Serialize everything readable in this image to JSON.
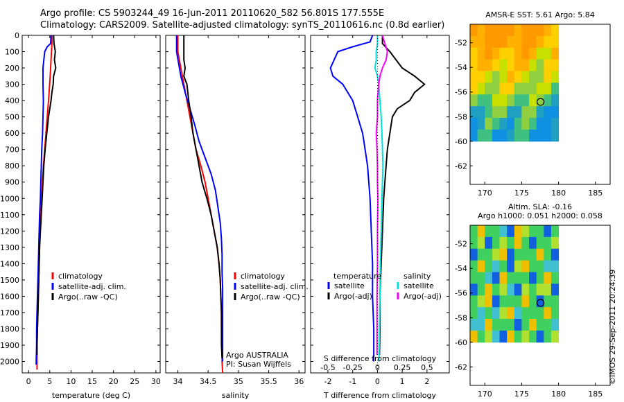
{
  "header": {
    "line1": "Argo profile: CS 5903244_49 16-Jun-2011 20110620_582 56.801S 177.555E",
    "line2": "Climatology: CARS2009. Satellite-adjusted climatology: synTS_20110616.nc (0.8d earlier)"
  },
  "watermark": "©IMOS 29-Sep-2011 20:24:39",
  "colors": {
    "climatology": "#ff0000",
    "satellite": "#0000ff",
    "argo": "#000000",
    "satellite_salinity": "#00e0e0",
    "argo_salinity": "#ff00ff"
  },
  "chart_data": [
    {
      "type": "line",
      "id": "temperature",
      "xlabel": "temperature (deg C)",
      "xlim": [
        -1.5,
        31
      ],
      "ylim": [
        2070,
        0
      ],
      "xticks": [
        "0",
        "5",
        "10",
        "15",
        "20",
        "25",
        "30"
      ],
      "yticks": [
        "0",
        "100",
        "200",
        "300",
        "400",
        "500",
        "600",
        "700",
        "800",
        "900",
        "1000",
        "1100",
        "1200",
        "1300",
        "1400",
        "1500",
        "1600",
        "1700",
        "1800",
        "1900",
        "2000"
      ],
      "legend": [
        "climatology",
        "satellite-adj. clim.",
        "Argo(..raw -QC)"
      ],
      "series": [
        {
          "name": "climatology",
          "color": "#ff0000",
          "points": [
            [
              5.5,
              0
            ],
            [
              5.5,
              50
            ],
            [
              5.4,
              100
            ],
            [
              5.3,
              150
            ],
            [
              5.1,
              250
            ],
            [
              4.7,
              400
            ],
            [
              4.4,
              500
            ],
            [
              4.1,
              600
            ],
            [
              3.8,
              700
            ],
            [
              3.5,
              800
            ],
            [
              3.3,
              900
            ],
            [
              3.1,
              1000
            ],
            [
              2.9,
              1100
            ],
            [
              2.7,
              1200
            ],
            [
              2.6,
              1300
            ],
            [
              2.5,
              1400
            ],
            [
              2.4,
              1500
            ],
            [
              2.3,
              1600
            ],
            [
              2.2,
              1700
            ],
            [
              2.1,
              1800
            ],
            [
              2.0,
              1900
            ],
            [
              2.0,
              2000
            ],
            [
              2.0,
              2050
            ]
          ]
        },
        {
          "name": "satellite-adj. clim.",
          "color": "#0000ff",
          "points": [
            [
              5.3,
              0
            ],
            [
              5.2,
              50
            ],
            [
              4.4,
              70
            ],
            [
              3.8,
              100
            ],
            [
              3.4,
              200
            ],
            [
              3.4,
              300
            ],
            [
              3.5,
              400
            ],
            [
              3.4,
              500
            ],
            [
              3.3,
              600
            ],
            [
              3.1,
              700
            ],
            [
              3.0,
              800
            ],
            [
              2.9,
              900
            ],
            [
              2.8,
              1000
            ],
            [
              2.6,
              1100
            ],
            [
              2.5,
              1200
            ],
            [
              2.4,
              1300
            ],
            [
              2.3,
              1400
            ],
            [
              2.2,
              1500
            ],
            [
              2.1,
              1600
            ],
            [
              2.0,
              1700
            ],
            [
              1.9,
              1800
            ],
            [
              1.9,
              1900
            ],
            [
              1.8,
              2000
            ],
            [
              1.8,
              2020
            ]
          ]
        },
        {
          "name": "Argo(..raw -QC)",
          "color": "#000000",
          "points": [
            [
              5.9,
              0
            ],
            [
              6.0,
              50
            ],
            [
              6.3,
              100
            ],
            [
              6.1,
              150
            ],
            [
              6.4,
              200
            ],
            [
              5.9,
              250
            ],
            [
              5.8,
              300
            ],
            [
              5.5,
              350
            ],
            [
              5.3,
              400
            ],
            [
              5.0,
              450
            ],
            [
              4.7,
              500
            ],
            [
              4.3,
              600
            ],
            [
              3.9,
              700
            ],
            [
              3.6,
              800
            ],
            [
              3.4,
              900
            ],
            [
              3.2,
              1000
            ],
            [
              3.0,
              1100
            ],
            [
              2.8,
              1200
            ],
            [
              2.6,
              1300
            ],
            [
              2.5,
              1400
            ],
            [
              2.4,
              1500
            ],
            [
              2.3,
              1600
            ],
            [
              2.2,
              1700
            ],
            [
              2.1,
              1800
            ],
            [
              2.0,
              1900
            ],
            [
              2.0,
              1960
            ]
          ]
        }
      ]
    },
    {
      "type": "line",
      "id": "salinity",
      "xlabel": "salinity",
      "xlim": [
        33.8,
        36.1
      ],
      "ylim": [
        2070,
        0
      ],
      "xticks": [
        "34",
        "34.5",
        "35",
        "35.5",
        "36"
      ],
      "legend": [
        "climatology",
        "satellite-adj. clim.",
        "Argo(..raw -QC)"
      ],
      "annotation": [
        "Argo AUSTRALIA",
        "PI: Susan Wijffels"
      ],
      "series": [
        {
          "name": "climatology",
          "color": "#ff0000",
          "points": [
            [
              34.0,
              0
            ],
            [
              34.0,
              100
            ],
            [
              34.05,
              200
            ],
            [
              34.1,
              300
            ],
            [
              34.15,
              400
            ],
            [
              34.2,
              500
            ],
            [
              34.25,
              600
            ],
            [
              34.3,
              700
            ],
            [
              34.38,
              800
            ],
            [
              34.45,
              900
            ],
            [
              34.5,
              1000
            ],
            [
              34.55,
              1100
            ],
            [
              34.6,
              1200
            ],
            [
              34.65,
              1300
            ],
            [
              34.68,
              1400
            ],
            [
              34.7,
              1500
            ],
            [
              34.71,
              1600
            ],
            [
              34.72,
              1700
            ],
            [
              34.72,
              1800
            ],
            [
              34.73,
              1900
            ],
            [
              34.73,
              2000
            ],
            [
              34.74,
              2070
            ]
          ]
        },
        {
          "name": "satellite-adj. clim.",
          "color": "#0000ff",
          "points": [
            [
              33.98,
              0
            ],
            [
              33.98,
              100
            ],
            [
              34.05,
              250
            ],
            [
              34.12,
              350
            ],
            [
              34.2,
              450
            ],
            [
              34.28,
              550
            ],
            [
              34.35,
              650
            ],
            [
              34.45,
              750
            ],
            [
              34.55,
              850
            ],
            [
              34.62,
              950
            ],
            [
              34.66,
              1050
            ],
            [
              34.7,
              1150
            ],
            [
              34.72,
              1250
            ],
            [
              34.73,
              1350
            ],
            [
              34.73,
              1450
            ],
            [
              34.74,
              1550
            ],
            [
              34.74,
              1650
            ],
            [
              34.74,
              1750
            ],
            [
              34.74,
              1850
            ],
            [
              34.74,
              1950
            ],
            [
              34.74,
              2000
            ]
          ]
        },
        {
          "name": "Argo(..raw -QC)",
          "color": "#000000",
          "points": [
            [
              34.1,
              0
            ],
            [
              34.1,
              50
            ],
            [
              34.1,
              100
            ],
            [
              34.1,
              150
            ],
            [
              34.12,
              200
            ],
            [
              34.1,
              250
            ],
            [
              34.15,
              300
            ],
            [
              34.18,
              400
            ],
            [
              34.22,
              500
            ],
            [
              34.25,
              600
            ],
            [
              34.3,
              700
            ],
            [
              34.35,
              800
            ],
            [
              34.4,
              900
            ],
            [
              34.48,
              1000
            ],
            [
              34.55,
              1100
            ],
            [
              34.6,
              1200
            ],
            [
              34.65,
              1300
            ],
            [
              34.68,
              1400
            ],
            [
              34.7,
              1500
            ],
            [
              34.71,
              1600
            ],
            [
              34.72,
              1700
            ],
            [
              34.72,
              1800
            ],
            [
              34.72,
              1900
            ],
            [
              34.73,
              1980
            ]
          ]
        }
      ]
    },
    {
      "type": "line",
      "id": "difference",
      "xlabel": "T difference from climatology",
      "xlabel_top": "S difference from climatology",
      "xlim": [
        -2.7,
        2.9
      ],
      "ylim": [
        2070,
        0
      ],
      "xticks": [
        "-2",
        "-1",
        "0",
        "1",
        "2"
      ],
      "xticks_top": [
        "-0.5",
        "-0.25",
        "0",
        "0.25",
        "0.5"
      ],
      "legend_left_title": "temperature",
      "legend_left": [
        "satellite",
        "Argo(-adj)"
      ],
      "legend_right_title": "salinity",
      "legend_right": [
        "satellite",
        "Argo(-adj)"
      ],
      "series": [
        {
          "name": "temperature satellite",
          "color": "#0000ff",
          "points": [
            [
              -0.2,
              0
            ],
            [
              -0.3,
              40
            ],
            [
              -1.0,
              70
            ],
            [
              -1.6,
              100
            ],
            [
              -1.9,
              200
            ],
            [
              -1.8,
              250
            ],
            [
              -1.4,
              300
            ],
            [
              -1.0,
              400
            ],
            [
              -0.8,
              500
            ],
            [
              -0.6,
              600
            ],
            [
              -0.5,
              700
            ],
            [
              -0.4,
              800
            ],
            [
              -0.35,
              900
            ],
            [
              -0.3,
              1000
            ],
            [
              -0.25,
              1200
            ],
            [
              -0.2,
              1400
            ],
            [
              -0.2,
              1600
            ],
            [
              -0.15,
              1800
            ],
            [
              -0.15,
              2000
            ]
          ]
        },
        {
          "name": "temperature Argo(-adj)",
          "color": "#000000",
          "points": [
            [
              0.2,
              0
            ],
            [
              0.2,
              50
            ],
            [
              0.5,
              100
            ],
            [
              1.0,
              200
            ],
            [
              1.5,
              250
            ],
            [
              1.9,
              300
            ],
            [
              1.5,
              350
            ],
            [
              1.3,
              400
            ],
            [
              0.8,
              450
            ],
            [
              0.6,
              500
            ],
            [
              0.5,
              600
            ],
            [
              0.4,
              700
            ],
            [
              0.35,
              800
            ],
            [
              0.3,
              900
            ],
            [
              0.25,
              1000
            ],
            [
              0.2,
              1200
            ],
            [
              0.15,
              1400
            ],
            [
              0.1,
              1600
            ],
            [
              0.1,
              1800
            ],
            [
              0.08,
              1960
            ]
          ]
        },
        {
          "name": "salinity satellite",
          "color": "#00e0e0",
          "points": [
            [
              0.0,
              0
            ],
            [
              0.0,
              50
            ],
            [
              -0.05,
              100
            ],
            [
              -0.05,
              150
            ],
            [
              -0.1,
              200
            ],
            [
              0.0,
              250
            ],
            [
              0.05,
              300
            ],
            [
              0.1,
              400
            ],
            [
              0.15,
              500
            ],
            [
              0.18,
              600
            ],
            [
              0.2,
              700
            ],
            [
              0.22,
              800
            ],
            [
              0.2,
              900
            ],
            [
              0.18,
              1000
            ],
            [
              0.15,
              1200
            ],
            [
              0.12,
              1400
            ],
            [
              0.1,
              1600
            ],
            [
              0.08,
              1800
            ],
            [
              0.06,
              2000
            ]
          ]
        },
        {
          "name": "salinity Argo(-adj)",
          "color": "#ff00ff",
          "points": [
            [
              0.2,
              0
            ],
            [
              0.3,
              50
            ],
            [
              0.4,
              100
            ],
            [
              0.35,
              150
            ],
            [
              0.2,
              200
            ],
            [
              0.1,
              250
            ],
            [
              0.05,
              300
            ],
            [
              0.0,
              400
            ],
            [
              0.0,
              500
            ],
            [
              -0.05,
              600
            ],
            [
              -0.02,
              700
            ],
            [
              0.0,
              800
            ],
            [
              0.0,
              900
            ],
            [
              0.02,
              1000
            ],
            [
              0.0,
              1200
            ],
            [
              0.0,
              1400
            ],
            [
              -0.02,
              1600
            ],
            [
              -0.02,
              1800
            ],
            [
              -0.02,
              1960
            ]
          ]
        }
      ]
    }
  ],
  "maps": [
    {
      "id": "sst",
      "title_lines": [
        "AMSR-E SST: 5.61  Argo: 5.84"
      ],
      "xticks": [
        "170",
        "175",
        "180",
        "185"
      ],
      "yticks": [
        "-52",
        "-54",
        "-56",
        "-58",
        "-60",
        "-62"
      ],
      "xlim": [
        168,
        187
      ],
      "ylim": [
        -63.5,
        -50.5
      ],
      "marker": [
        177.555,
        -56.801
      ]
    },
    {
      "id": "sla",
      "title_lines": [
        "Altim. SLA: -0.16",
        "Argo h1000: 0.051  h2000: 0.058"
      ],
      "xticks": [
        "170",
        "175",
        "180",
        "185"
      ],
      "yticks": [
        "-52",
        "-54",
        "-56",
        "-58",
        "-60",
        "-62"
      ],
      "xlim": [
        168,
        187
      ],
      "ylim": [
        -63.5,
        -50.5
      ],
      "marker": [
        177.555,
        -56.801
      ]
    }
  ]
}
